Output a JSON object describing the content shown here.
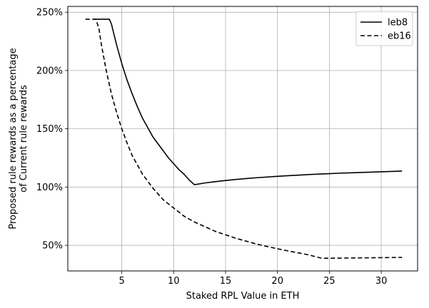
{
  "chart_data": {
    "type": "line",
    "title": "",
    "xlabel": "Staked RPL Value in ETH",
    "ylabel_lines": [
      "Proposed rule rewards as a percentage",
      "of Current rule rewards"
    ],
    "xlim": [
      -0.2,
      33.5
    ],
    "ylim": [
      28,
      255
    ],
    "xticks": [
      5,
      10,
      15,
      20,
      25,
      30
    ],
    "xtick_labels": [
      "5",
      "10",
      "15",
      "20",
      "25",
      "30"
    ],
    "yticks": [
      50,
      100,
      150,
      200,
      250
    ],
    "ytick_labels": [
      "50%",
      "100%",
      "150%",
      "200%",
      "250%"
    ],
    "grid": true,
    "legend_position": "top-right",
    "colors": {
      "line": "#000000",
      "grid": "#b0b0b0",
      "axis": "#000000",
      "legend_border": "#cccccc"
    },
    "series": [
      {
        "name": "leb8",
        "style": "solid",
        "x": [
          2.4,
          3.0,
          3.5,
          3.8,
          4.0,
          4.5,
          5.0,
          5.5,
          6.0,
          6.5,
          7.0,
          7.5,
          8.0,
          8.5,
          9.0,
          9.5,
          10.0,
          10.5,
          11.0,
          11.5,
          12.0,
          13,
          14,
          15,
          16,
          17,
          18,
          19,
          20,
          21,
          22,
          23,
          24,
          25,
          26,
          27,
          28,
          29,
          30,
          31,
          32
        ],
        "y": [
          244,
          244,
          244,
          244,
          240,
          222,
          206,
          192,
          180,
          169,
          159,
          151,
          143,
          137,
          131,
          125,
          120,
          115,
          111,
          106,
          102,
          103.5,
          104.6,
          105.6,
          106.5,
          107.3,
          108,
          108.6,
          109.2,
          109.7,
          110.2,
          110.7,
          111.1,
          111.5,
          111.9,
          112.2,
          112.5,
          112.8,
          113.1,
          113.4,
          113.7
        ]
      },
      {
        "name": "eb16",
        "style": "dashed",
        "x": [
          1.5,
          2.0,
          2.5,
          2.8,
          3.0,
          3.5,
          4.0,
          4.5,
          5.0,
          5.5,
          6.0,
          7.0,
          8.0,
          9.0,
          10.0,
          11.0,
          12.0,
          13,
          14,
          15,
          16,
          17,
          18,
          19,
          20,
          21,
          22,
          23,
          24.3,
          25,
          26,
          27,
          28,
          29,
          30,
          31,
          32
        ],
        "y": [
          244,
          244,
          244,
          236,
          224,
          200,
          180,
          164,
          150,
          138,
          127,
          111,
          99,
          89,
          82,
          75,
          70,
          66,
          62,
          59,
          56,
          53.5,
          51,
          49,
          47,
          45.2,
          43.5,
          41.8,
          38.8,
          38.9,
          39.0,
          39.1,
          39.2,
          39.3,
          39.4,
          39.5,
          39.6
        ]
      }
    ]
  }
}
